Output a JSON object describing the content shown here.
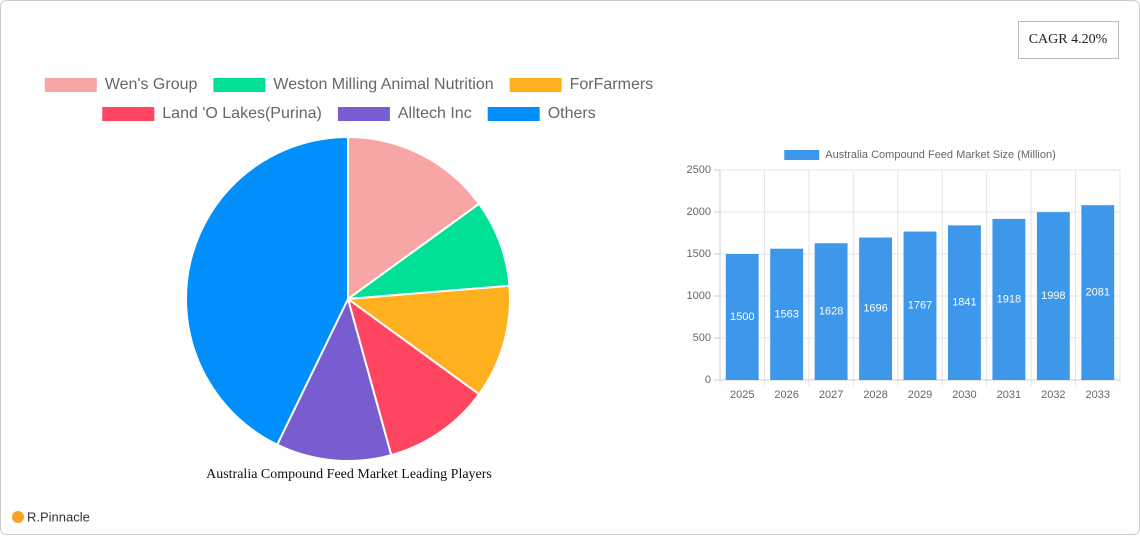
{
  "chart_data": [
    {
      "type": "pie",
      "title": "Australia Compound Feed Market Leading Players",
      "categories": [
        "Wen's Group",
        "Weston Milling Animal Nutrition",
        "ForFarmers",
        "Land 'O Lakes(Purina)",
        "Alltech Inc",
        "Others"
      ],
      "values": [
        15,
        8.7,
        11.3,
        10.7,
        11.5,
        42.8
      ],
      "colors": [
        "#f8a5a5",
        "#00e096",
        "#ffb01f",
        "#ff4560",
        "#775dd0",
        "#008ffb"
      ],
      "legend": "top"
    },
    {
      "type": "bar",
      "categories": [
        "2025",
        "2026",
        "2027",
        "2028",
        "2029",
        "2030",
        "2031",
        "2032",
        "2033"
      ],
      "series": [
        {
          "name": "Australia Compound Feed Market Size (Million)",
          "color": "#3d97ea",
          "values": [
            1500,
            1563,
            1628,
            1696,
            1767,
            1841,
            1918,
            1998,
            2081
          ]
        }
      ],
      "ylim": [
        0,
        2500
      ],
      "yticks": [
        0,
        500,
        1000,
        1500,
        2000,
        2500
      ],
      "grid": true,
      "legend": "top"
    }
  ],
  "cagr": "CAGR 4.20%",
  "brand": "R.Pinnacle"
}
